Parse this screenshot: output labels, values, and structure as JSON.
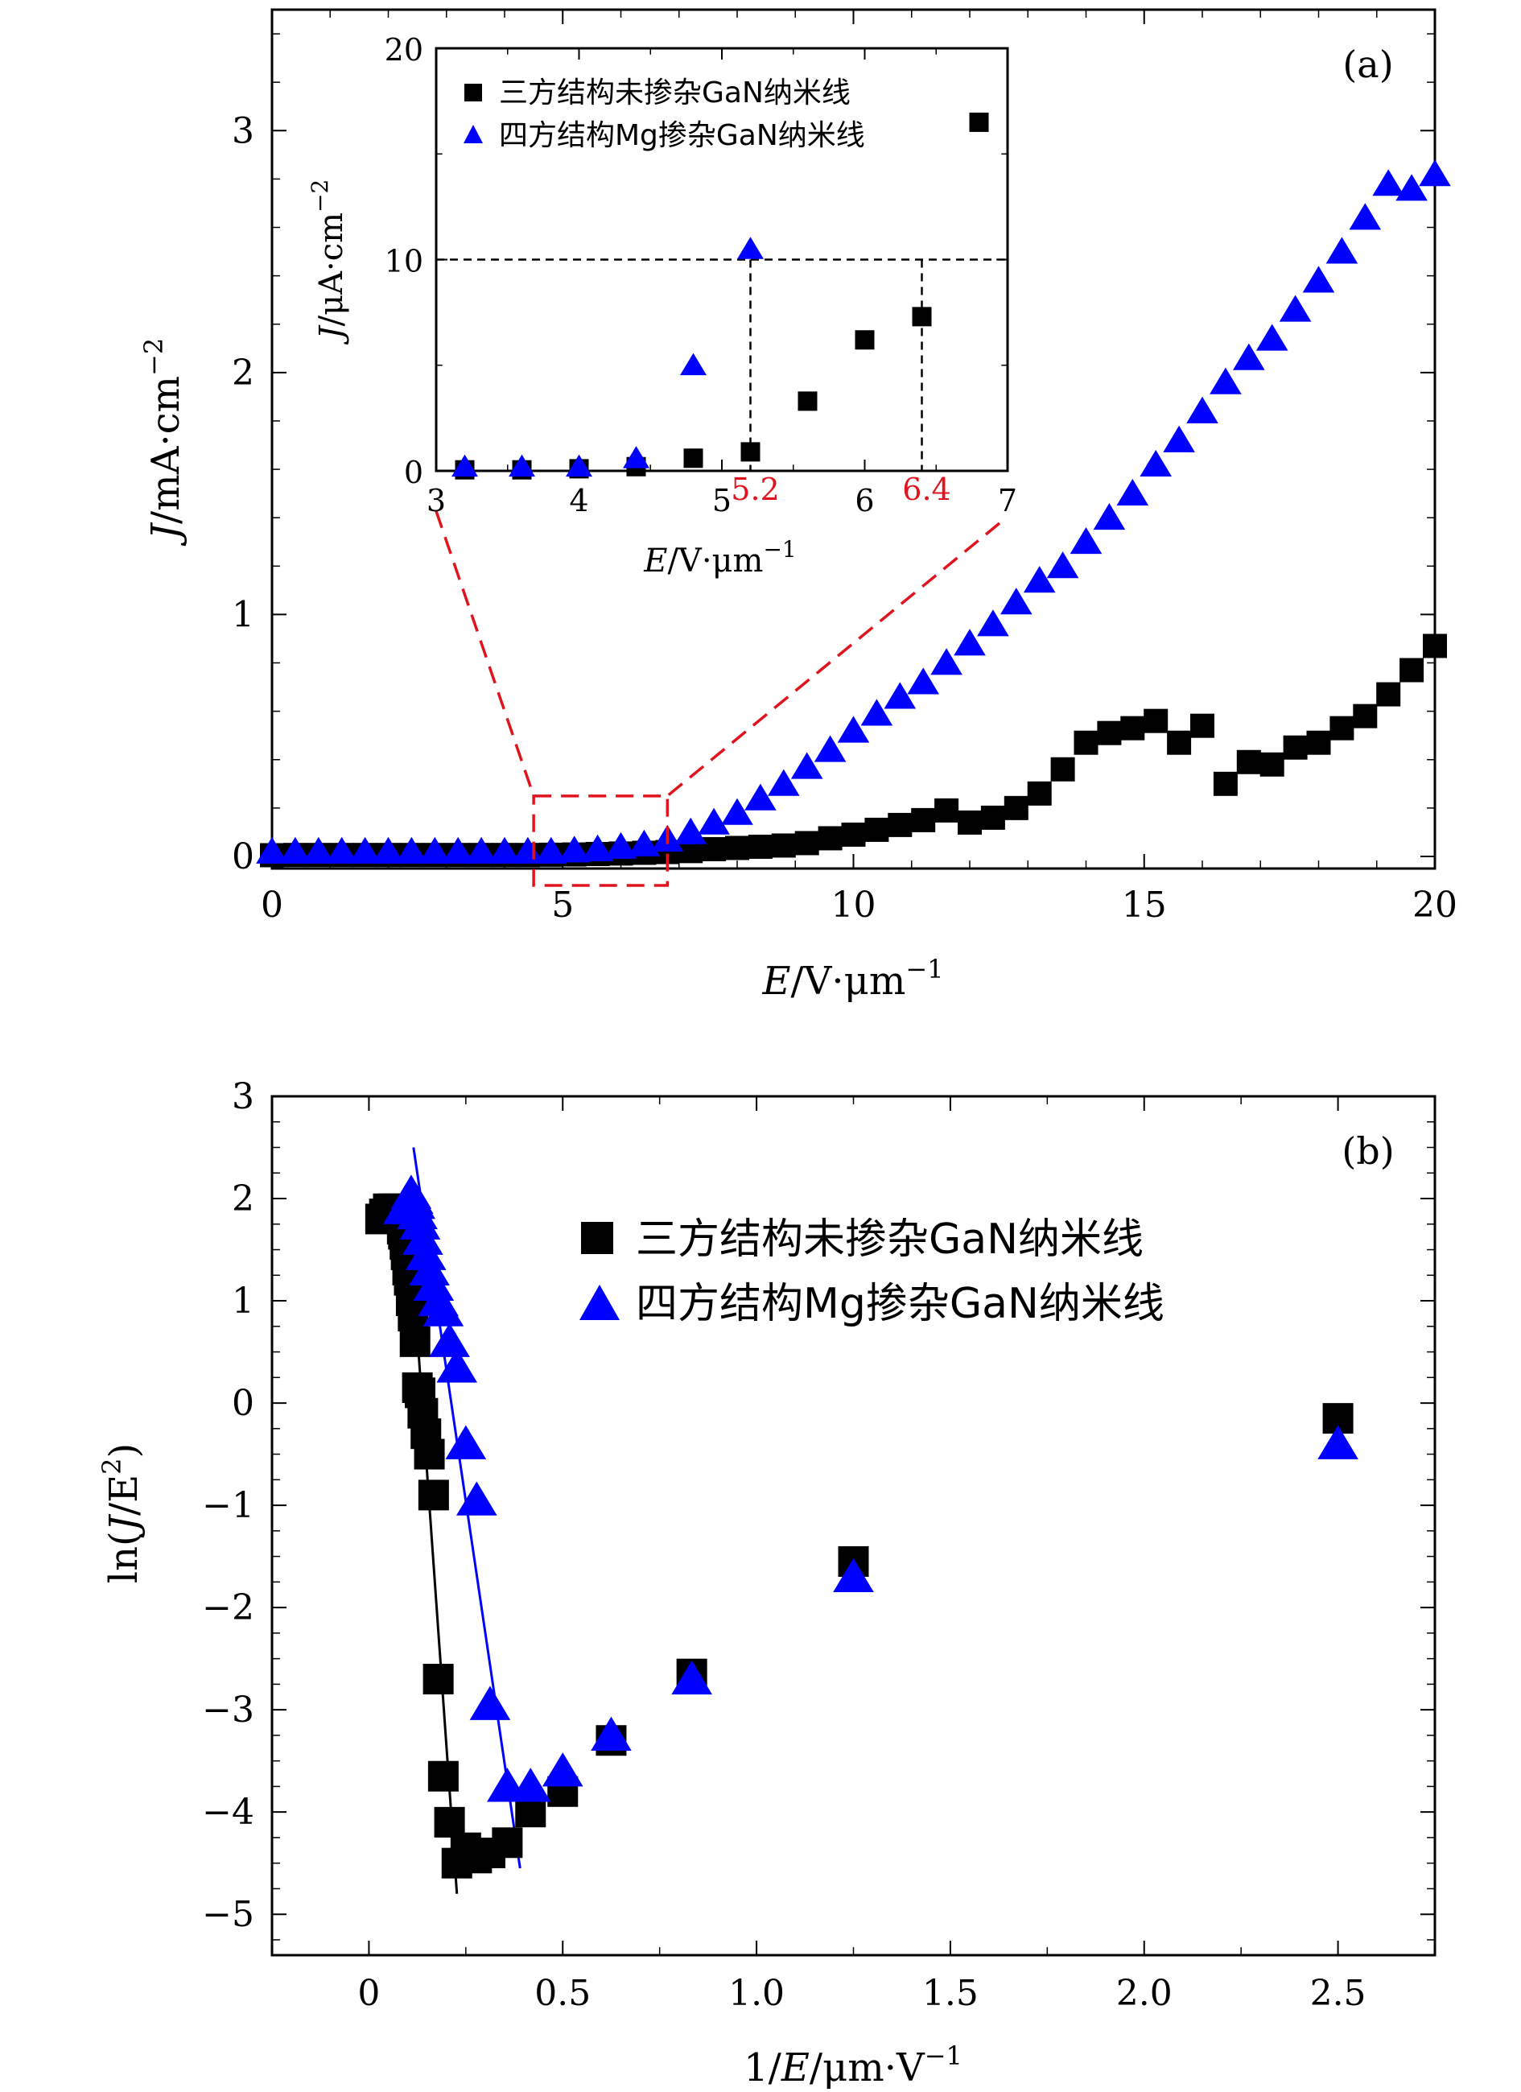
{
  "chart_data": [
    {
      "panel": "(a)",
      "type": "scatter",
      "xlabel": "E/V·μm⁻¹",
      "ylabel": "J/mA·cm⁻²",
      "xlim": [
        0,
        20
      ],
      "ylim": [
        -0.05,
        3.5
      ],
      "xticks": [
        "0",
        "5",
        "10",
        "15",
        "20"
      ],
      "yticks": [
        "0",
        "1",
        "2",
        "3"
      ],
      "series": [
        {
          "name": "三方结构未掺杂GaN纳米线",
          "marker": "square",
          "color": "#000000",
          "points": [
            [
              0,
              0.005
            ],
            [
              0.4,
              0.006
            ],
            [
              0.8,
              0.006
            ],
            [
              1.2,
              0.006
            ],
            [
              1.6,
              0.006
            ],
            [
              2.0,
              0.006
            ],
            [
              2.4,
              0.006
            ],
            [
              2.8,
              0.006
            ],
            [
              3.2,
              0.006
            ],
            [
              3.6,
              0.006
            ],
            [
              4.0,
              0.006
            ],
            [
              4.4,
              0.006
            ],
            [
              4.8,
              0.007
            ],
            [
              5.2,
              0.008
            ],
            [
              5.6,
              0.01
            ],
            [
              6.0,
              0.012
            ],
            [
              6.4,
              0.015
            ],
            [
              6.8,
              0.018
            ],
            [
              7.2,
              0.022
            ],
            [
              7.6,
              0.03
            ],
            [
              8.0,
              0.035
            ],
            [
              8.4,
              0.04
            ],
            [
              8.8,
              0.045
            ],
            [
              9.2,
              0.055
            ],
            [
              9.6,
              0.075
            ],
            [
              10.0,
              0.09
            ],
            [
              10.4,
              0.11
            ],
            [
              10.8,
              0.13
            ],
            [
              11.2,
              0.15
            ],
            [
              11.6,
              0.19
            ],
            [
              12.0,
              0.14
            ],
            [
              12.4,
              0.16
            ],
            [
              12.8,
              0.2
            ],
            [
              13.2,
              0.26
            ],
            [
              13.6,
              0.36
            ],
            [
              14.0,
              0.47
            ],
            [
              14.4,
              0.51
            ],
            [
              14.8,
              0.53
            ],
            [
              15.2,
              0.56
            ],
            [
              15.6,
              0.47
            ],
            [
              16.0,
              0.54
            ],
            [
              16.4,
              0.3
            ],
            [
              16.8,
              0.39
            ],
            [
              17.2,
              0.38
            ],
            [
              17.6,
              0.45
            ],
            [
              18.0,
              0.47
            ],
            [
              18.4,
              0.53
            ],
            [
              18.8,
              0.58
            ],
            [
              19.2,
              0.67
            ],
            [
              19.6,
              0.77
            ],
            [
              20.0,
              0.87
            ]
          ]
        },
        {
          "name": "四方结构Mg掺杂GaN纳米线",
          "marker": "triangle",
          "color": "#0000ff",
          "points": [
            [
              0,
              0.02
            ],
            [
              0.4,
              0.02
            ],
            [
              0.8,
              0.02
            ],
            [
              1.2,
              0.02
            ],
            [
              1.6,
              0.02
            ],
            [
              2.0,
              0.02
            ],
            [
              2.4,
              0.02
            ],
            [
              2.8,
              0.02
            ],
            [
              3.2,
              0.02
            ],
            [
              3.6,
              0.02
            ],
            [
              4.0,
              0.02
            ],
            [
              4.4,
              0.02
            ],
            [
              4.8,
              0.02
            ],
            [
              5.2,
              0.025
            ],
            [
              5.6,
              0.03
            ],
            [
              6.0,
              0.04
            ],
            [
              6.4,
              0.05
            ],
            [
              6.8,
              0.07
            ],
            [
              7.2,
              0.1
            ],
            [
              7.6,
              0.14
            ],
            [
              8.0,
              0.18
            ],
            [
              8.4,
              0.24
            ],
            [
              8.8,
              0.3
            ],
            [
              9.2,
              0.37
            ],
            [
              9.6,
              0.44
            ],
            [
              10.0,
              0.52
            ],
            [
              10.4,
              0.59
            ],
            [
              10.8,
              0.66
            ],
            [
              11.2,
              0.72
            ],
            [
              11.6,
              0.8
            ],
            [
              12.0,
              0.88
            ],
            [
              12.4,
              0.96
            ],
            [
              12.8,
              1.05
            ],
            [
              13.2,
              1.14
            ],
            [
              13.6,
              1.2
            ],
            [
              14.0,
              1.3
            ],
            [
              14.4,
              1.4
            ],
            [
              14.8,
              1.5
            ],
            [
              15.2,
              1.62
            ],
            [
              15.6,
              1.72
            ],
            [
              16.0,
              1.84
            ],
            [
              16.4,
              1.96
            ],
            [
              16.8,
              2.06
            ],
            [
              17.2,
              2.14
            ],
            [
              17.6,
              2.26
            ],
            [
              18.0,
              2.38
            ],
            [
              18.4,
              2.5
            ],
            [
              18.8,
              2.64
            ],
            [
              19.2,
              2.78
            ],
            [
              19.6,
              2.76
            ],
            [
              20.0,
              2.82
            ]
          ]
        }
      ],
      "inset": {
        "xlabel": "E/V·μm⁻¹",
        "ylabel": "J/μA·cm⁻²",
        "xlim": [
          3,
          7
        ],
        "ylim": [
          0,
          20
        ],
        "xticks": [
          "3",
          "4",
          "5",
          "6",
          "7"
        ],
        "yticks": [
          "0",
          "10",
          "20"
        ],
        "threshold_y": 10,
        "threshold_x_labels": [
          "5.2",
          "6.4"
        ],
        "threshold_x": [
          5.2,
          6.4
        ],
        "series": [
          {
            "name": "三方结构未掺杂GaN纳米线",
            "marker": "square",
            "color": "#000000",
            "points": [
              [
                3.2,
                0.05
              ],
              [
                3.6,
                0.05
              ],
              [
                4.0,
                0.1
              ],
              [
                4.4,
                0.2
              ],
              [
                4.8,
                0.6
              ],
              [
                5.2,
                0.9
              ],
              [
                5.6,
                3.3
              ],
              [
                6.0,
                6.2
              ],
              [
                6.4,
                7.3
              ],
              [
                6.8,
                16.5
              ]
            ]
          },
          {
            "name": "四方结构Mg掺杂GaN纳米线",
            "marker": "triangle",
            "color": "#0000ff",
            "points": [
              [
                3.2,
                0.2
              ],
              [
                3.6,
                0.2
              ],
              [
                4.0,
                0.2
              ],
              [
                4.4,
                0.6
              ],
              [
                4.8,
                5.0
              ],
              [
                5.2,
                10.5
              ]
            ]
          }
        ]
      }
    },
    {
      "panel": "(b)",
      "type": "scatter",
      "xlabel": "1/E/μm·V⁻¹",
      "ylabel": "ln(J/E²)",
      "xlim": [
        -0.25,
        2.75
      ],
      "ylim": [
        -5.4,
        3
      ],
      "xticks": [
        "0",
        "0.5",
        "1.0",
        "1.5",
        "2.0",
        "2.5"
      ],
      "yticks": [
        "−5",
        "−4",
        "−3",
        "−2",
        "−1",
        "0",
        "1",
        "2",
        "3"
      ],
      "series": [
        {
          "name": "三方结构未掺杂GaN纳米线",
          "marker": "square",
          "color": "#000000",
          "points": [
            [
              2.5,
              -0.15
            ],
            [
              1.25,
              -1.55
            ],
            [
              0.833,
              -2.65
            ],
            [
              0.625,
              -3.3
            ],
            [
              0.5,
              -3.8
            ],
            [
              0.417,
              -4.0
            ],
            [
              0.357,
              -4.3
            ],
            [
              0.3125,
              -4.4
            ],
            [
              0.278,
              -4.45
            ],
            [
              0.25,
              -4.35
            ],
            [
              0.227,
              -4.5
            ],
            [
              0.208,
              -4.1
            ],
            [
              0.192,
              -3.65
            ],
            [
              0.179,
              -2.7
            ],
            [
              0.167,
              -0.9
            ],
            [
              0.156,
              -0.5
            ],
            [
              0.147,
              -0.3
            ],
            [
              0.139,
              -0.1
            ],
            [
              0.132,
              0.1
            ],
            [
              0.125,
              0.15
            ],
            [
              0.119,
              0.6
            ],
            [
              0.114,
              0.85
            ],
            [
              0.109,
              1.0
            ],
            [
              0.104,
              1.2
            ],
            [
              0.1,
              1.3
            ],
            [
              0.096,
              1.45
            ],
            [
              0.093,
              1.55
            ],
            [
              0.089,
              1.65
            ],
            [
              0.086,
              1.7
            ],
            [
              0.083,
              1.8
            ],
            [
              0.081,
              1.85
            ],
            [
              0.078,
              1.9
            ],
            [
              0.063,
              1.9
            ],
            [
              0.05,
              1.9
            ],
            [
              0.04,
              1.85
            ],
            [
              0.03,
              1.8
            ]
          ]
        },
        {
          "name": "四方结构Mg掺杂GaN纳米线",
          "marker": "triangle",
          "color": "#0000ff",
          "points": [
            [
              2.5,
              -0.4
            ],
            [
              1.25,
              -1.7
            ],
            [
              0.833,
              -2.7
            ],
            [
              0.625,
              -3.25
            ],
            [
              0.5,
              -3.6
            ],
            [
              0.417,
              -3.75
            ],
            [
              0.357,
              -3.75
            ],
            [
              0.3125,
              -2.95
            ],
            [
              0.278,
              -0.95
            ],
            [
              0.25,
              -0.4
            ],
            [
              0.227,
              0.35
            ],
            [
              0.208,
              0.6
            ],
            [
              0.192,
              0.9
            ],
            [
              0.179,
              1.0
            ],
            [
              0.167,
              1.15
            ],
            [
              0.156,
              1.3
            ],
            [
              0.147,
              1.45
            ],
            [
              0.139,
              1.6
            ],
            [
              0.132,
              1.75
            ],
            [
              0.125,
              1.85
            ],
            [
              0.119,
              1.95
            ],
            [
              0.114,
              2.0
            ],
            [
              0.109,
              2.05
            ],
            [
              0.104,
              2.0
            ],
            [
              0.1,
              1.95
            ],
            [
              0.096,
              1.9
            ],
            [
              0.089,
              1.9
            ]
          ]
        }
      ],
      "fit_lines": [
        {
          "series": "三方结构未掺杂GaN纳米线",
          "color": "#000000",
          "x": [
            0.1,
            0.227
          ],
          "y": [
            2.0,
            -4.8
          ]
        },
        {
          "series": "四方结构Mg掺杂GaN纳米线",
          "color": "#0000ff",
          "x": [
            0.115,
            0.39
          ],
          "y": [
            2.5,
            -4.55
          ]
        }
      ]
    }
  ]
}
